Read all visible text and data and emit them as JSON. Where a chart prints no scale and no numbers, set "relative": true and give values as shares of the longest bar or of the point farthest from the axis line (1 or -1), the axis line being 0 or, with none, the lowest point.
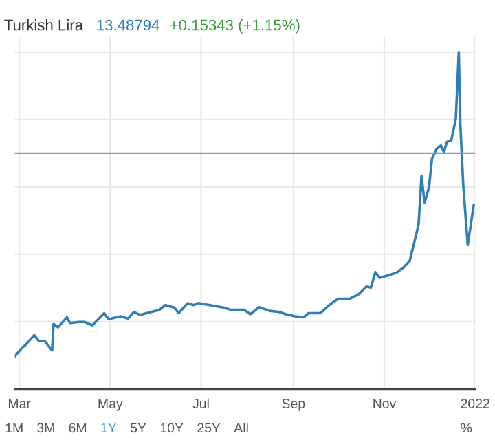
{
  "chart_data": {
    "type": "line",
    "title": "Turkish Lira",
    "subtitle": "13.48794",
    "annotations": [
      "+0.15343 (+1.15%)",
      "1M",
      "3M",
      "6M",
      "1Y",
      "5Y",
      "10Y",
      "25Y",
      "All",
      "%"
    ],
    "relative": true,
    "grid": true,
    "legend": false,
    "marker": "none",
    "line_style": "solid",
    "xlim": [
      "2021-02-26",
      "2022-01-01"
    ],
    "xticks": [
      {
        "value": "2021-03-01",
        "label": "Mar"
      },
      {
        "value": "2021-05-01",
        "label": "May"
      },
      {
        "value": "2021-07-01",
        "label": "Jul"
      },
      {
        "value": "2021-09-01",
        "label": "Sep"
      },
      {
        "value": "2021-11-01",
        "label": "Nov"
      },
      {
        "value": "2022-01-01",
        "label": "2022"
      }
    ],
    "ref_lines": [
      {
        "axis": "y",
        "value": 0.7,
        "label": null,
        "color": "#999999"
      }
    ],
    "series": [
      {
        "color": "#2f7fb5",
        "x": [
          "2021-02-26",
          "2021-03-03",
          "2021-03-05",
          "2021-03-11",
          "2021-03-14",
          "2021-03-18",
          "2021-03-23",
          "2021-03-24",
          "2021-03-27",
          "2021-04-02",
          "2021-04-04",
          "2021-04-10",
          "2021-04-14",
          "2021-04-19",
          "2021-04-27",
          "2021-04-30",
          "2021-05-08",
          "2021-05-13",
          "2021-05-17",
          "2021-05-21",
          "2021-05-28",
          "2021-06-03",
          "2021-06-07",
          "2021-06-13",
          "2021-06-16",
          "2021-06-22",
          "2021-06-26",
          "2021-06-29",
          "2021-07-07",
          "2021-07-16",
          "2021-07-21",
          "2021-07-30",
          "2021-08-03",
          "2021-08-09",
          "2021-08-16",
          "2021-08-22",
          "2021-08-27",
          "2021-09-02",
          "2021-09-08",
          "2021-09-11",
          "2021-09-19",
          "2021-09-25",
          "2021-10-01",
          "2021-10-09",
          "2021-10-15",
          "2021-10-20",
          "2021-10-23",
          "2021-10-26",
          "2021-10-29",
          "2021-11-04",
          "2021-11-09",
          "2021-11-14",
          "2021-11-18",
          "2021-11-21",
          "2021-11-24",
          "2021-11-26",
          "2021-11-28",
          "2021-12-01",
          "2021-12-03",
          "2021-12-06",
          "2021-12-09",
          "2021-12-11",
          "2021-12-13",
          "2021-12-16",
          "2021-12-19",
          "2021-12-21",
          "2021-12-22",
          "2021-12-24",
          "2021-12-27",
          "2021-12-31"
        ],
        "values": [
          0.097,
          0.123,
          0.13,
          0.16,
          0.143,
          0.143,
          0.114,
          0.193,
          0.183,
          0.213,
          0.196,
          0.199,
          0.199,
          0.189,
          0.225,
          0.207,
          0.216,
          0.209,
          0.229,
          0.22,
          0.228,
          0.235,
          0.249,
          0.242,
          0.225,
          0.255,
          0.249,
          0.255,
          0.249,
          0.242,
          0.235,
          0.235,
          0.222,
          0.243,
          0.232,
          0.229,
          0.222,
          0.216,
          0.213,
          0.225,
          0.225,
          0.249,
          0.268,
          0.268,
          0.282,
          0.304,
          0.301,
          0.347,
          0.33,
          0.338,
          0.345,
          0.361,
          0.38,
          0.433,
          0.488,
          0.633,
          0.552,
          0.598,
          0.683,
          0.712,
          0.723,
          0.703,
          0.733,
          0.739,
          0.802,
          1.0,
          0.789,
          0.604,
          0.427,
          0.545
        ]
      }
    ]
  }
}
